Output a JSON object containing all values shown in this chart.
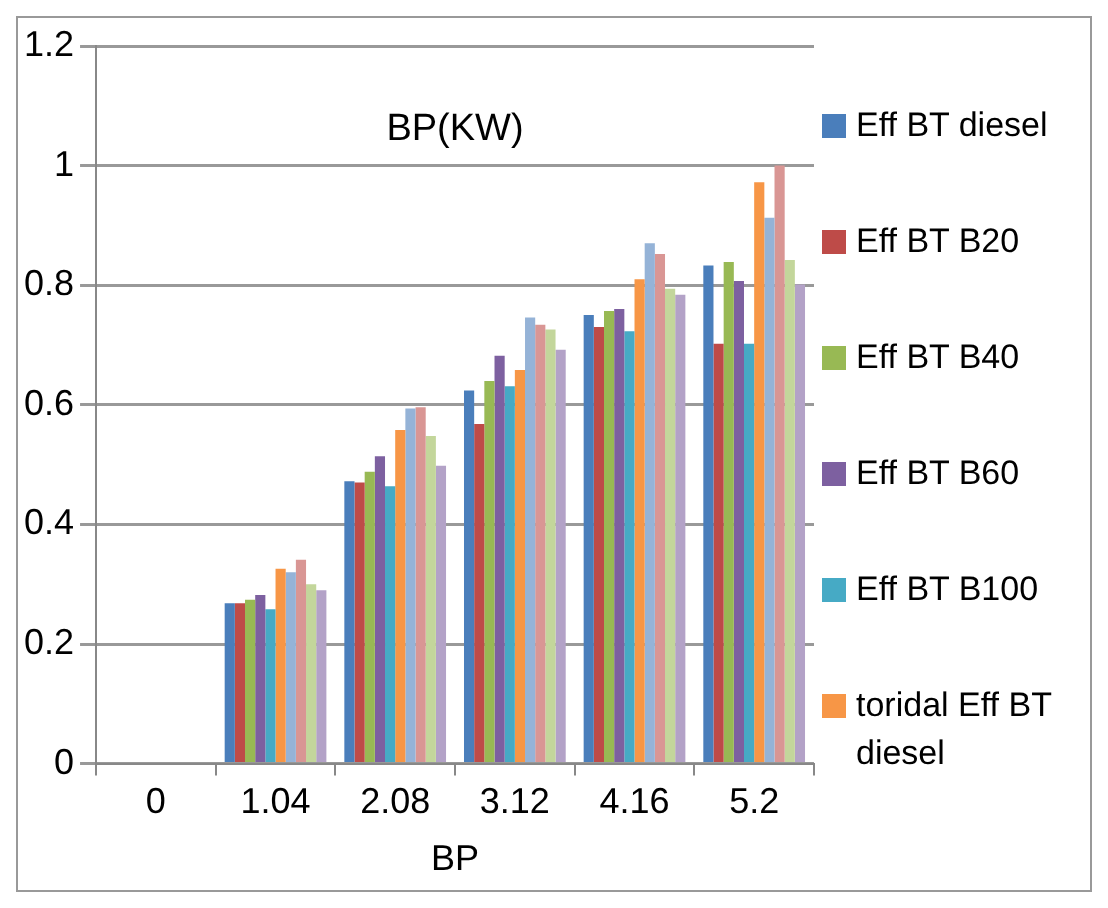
{
  "chart_data": {
    "type": "bar",
    "title": "BP(KW)",
    "xlabel": "BP",
    "categories": [
      "0",
      "1.04",
      "2.08",
      "3.12",
      "4.16",
      "5.2"
    ],
    "series": [
      {
        "name": "Eff BT diesel",
        "color": "#4a7ebb",
        "values": [
          null,
          0.268,
          0.472,
          0.624,
          0.75,
          0.833
        ]
      },
      {
        "name": "Eff BT B20",
        "color": "#be4b48",
        "values": [
          null,
          0.268,
          0.47,
          0.568,
          0.73,
          0.702
        ]
      },
      {
        "name": "Eff BT B40",
        "color": "#98b954",
        "values": [
          null,
          0.274,
          0.488,
          0.64,
          0.757,
          0.839
        ]
      },
      {
        "name": "Eff BT B60",
        "color": "#7d60a0",
        "values": [
          null,
          0.282,
          0.514,
          0.682,
          0.76,
          0.807
        ]
      },
      {
        "name": "Eff BT B100",
        "color": "#46aac5",
        "values": [
          null,
          0.258,
          0.464,
          0.631,
          0.723,
          0.702
        ]
      },
      {
        "name": "toridal Eff BT diesel",
        "color": "#f79646",
        "values": [
          null,
          0.326,
          0.558,
          0.658,
          0.81,
          0.972
        ]
      },
      {
        "color": "#95b3d7",
        "values": [
          null,
          0.32,
          0.594,
          0.746,
          0.87,
          0.913
        ]
      },
      {
        "color": "#d99694",
        "values": [
          null,
          0.341,
          0.596,
          0.734,
          0.852,
          1.0
        ]
      },
      {
        "color": "#c3d69b",
        "values": [
          null,
          0.3,
          0.548,
          0.726,
          0.794,
          0.842
        ]
      },
      {
        "color": "#b3a2c7",
        "values": [
          null,
          0.29,
          0.498,
          0.692,
          0.784,
          0.801
        ]
      }
    ],
    "ylim": [
      0,
      1.2
    ],
    "yticks": [
      0,
      0.2,
      0.4,
      0.6,
      0.8,
      1,
      1.2
    ],
    "grid": "y",
    "legend": "right"
  }
}
